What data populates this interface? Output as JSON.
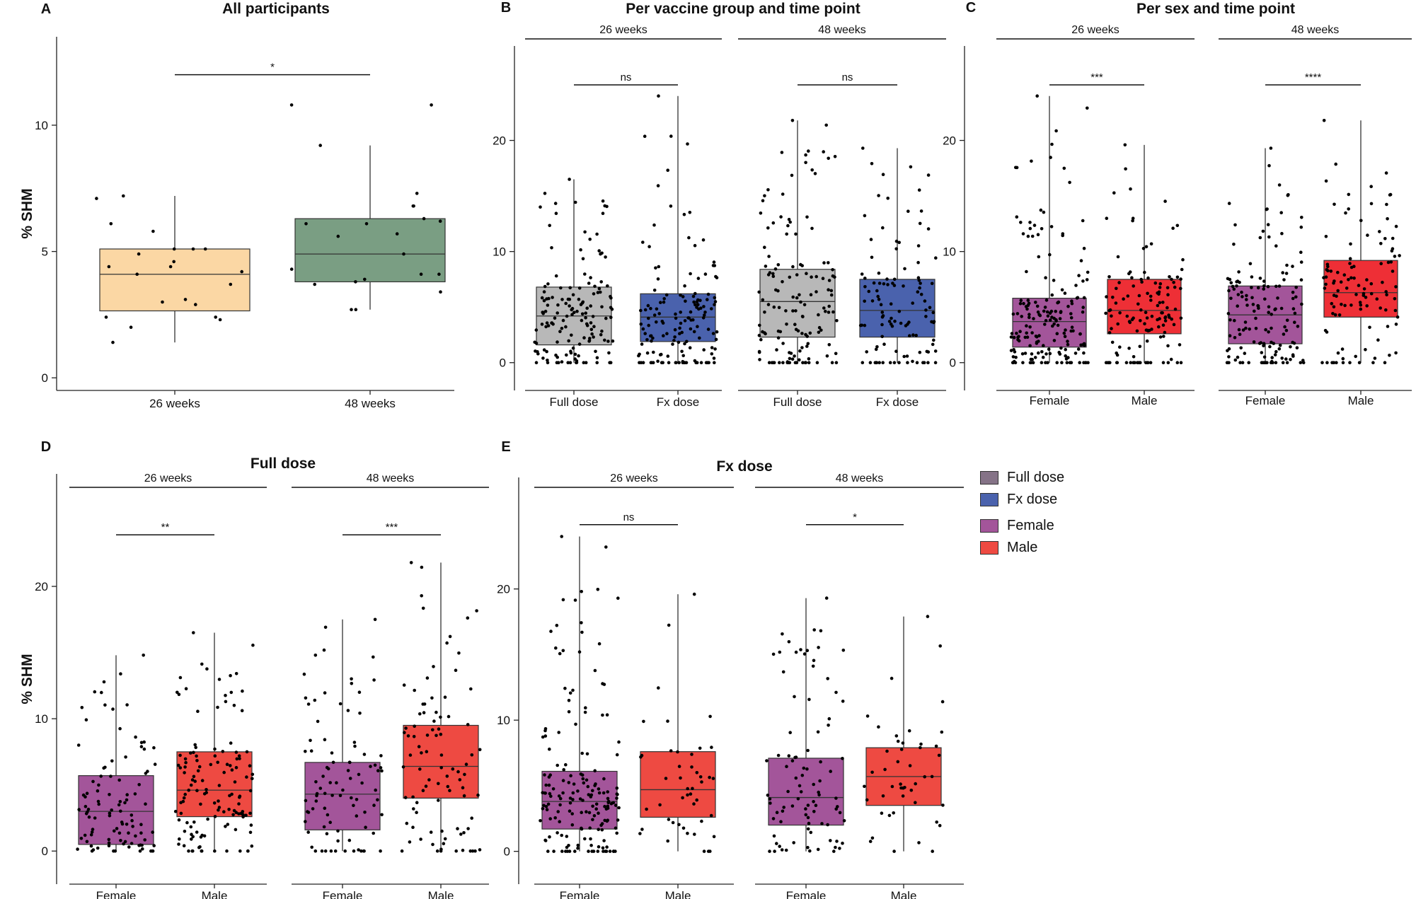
{
  "figure": {
    "legend": [
      {
        "label": "Full dose",
        "color": "#857387"
      },
      {
        "label": "Fx dose",
        "color": "#4a62ad"
      },
      {
        "label": "Female",
        "color": "#a3559a"
      },
      {
        "label": "Male",
        "color": "#ee4a42"
      }
    ]
  },
  "chart_data": [
    {
      "id": "A",
      "type": "box",
      "title": "All participants",
      "ylabel": "% SHM",
      "ylim": [
        -0.5,
        13.5
      ],
      "yticks": [
        0,
        5,
        10
      ],
      "facets": [
        {
          "label": "",
          "boxes": [
            {
              "category": "26 weeks",
              "color": "#fbd7a4",
              "min": 1.4,
              "q1": 2.65,
              "median": 4.1,
              "q3": 5.1,
              "max": 7.2,
              "points": [
                7.2,
                6.1,
                5.1,
                5.1,
                5.1,
                4.9,
                4.6,
                4.4,
                4.4,
                4.2,
                4.1,
                3.7,
                3.1,
                3.0,
                2.9,
                2.4,
                2.4,
                2.3,
                2.0,
                1.4,
                5.8,
                7.1
              ]
            },
            {
              "category": "48 weeks",
              "color": "#7a9e83",
              "min": 2.7,
              "q1": 3.8,
              "median": 4.9,
              "q3": 6.3,
              "max": 9.2,
              "points": [
                10.8,
                10.8,
                9.2,
                7.3,
                6.8,
                6.8,
                6.3,
                6.1,
                6.1,
                5.7,
                5.6,
                4.9,
                4.3,
                4.1,
                4.1,
                3.9,
                3.8,
                3.7,
                3.4,
                2.7,
                2.7,
                6.2
              ]
            }
          ],
          "annotations": [
            {
              "from": 0,
              "to": 1,
              "y": 12.0,
              "text": "*"
            }
          ]
        }
      ]
    },
    {
      "id": "B",
      "type": "box",
      "title": "Per vaccine group and time point",
      "ylabel": "",
      "ylim": [
        -2.5,
        28.5
      ],
      "yticks": [
        0,
        10,
        20
      ],
      "facets": [
        {
          "label": "26 weeks",
          "boxes": [
            {
              "category": "Full dose",
              "color": "#b8b8b8",
              "min": 0,
              "q1": 1.6,
              "median": 4.2,
              "q3": 6.8,
              "max": 16.5,
              "n": 150,
              "seed": 11
            },
            {
              "category": "Fx dose",
              "color": "#4a62ad",
              "min": 0,
              "q1": 1.9,
              "median": 4.1,
              "q3": 6.2,
              "max": 24.0,
              "n": 150,
              "seed": 12
            }
          ],
          "annotations": [
            {
              "from": 0,
              "to": 1,
              "y": 25.0,
              "text": "ns"
            }
          ]
        },
        {
          "label": "48 weeks",
          "boxes": [
            {
              "category": "Full dose",
              "color": "#b8b8b8",
              "min": 0,
              "q1": 2.3,
              "median": 5.5,
              "q3": 8.4,
              "max": 21.8,
              "n": 140,
              "seed": 13
            },
            {
              "category": "Fx dose",
              "color": "#4a62ad",
              "min": 0,
              "q1": 2.3,
              "median": 4.7,
              "q3": 7.5,
              "max": 19.3,
              "n": 110,
              "seed": 14
            }
          ],
          "annotations": [
            {
              "from": 0,
              "to": 1,
              "y": 25.0,
              "text": "ns"
            }
          ]
        }
      ]
    },
    {
      "id": "C",
      "type": "box",
      "title": "Per sex and time point",
      "ylabel": "",
      "ylim": [
        -2.5,
        28.5
      ],
      "yticks": [
        0,
        10,
        20
      ],
      "facets": [
        {
          "label": "26 weeks",
          "boxes": [
            {
              "category": "Female",
              "color": "#a3559a",
              "min": 0,
              "q1": 1.4,
              "median": 3.7,
              "q3": 5.8,
              "max": 24.0,
              "n": 180,
              "seed": 21
            },
            {
              "category": "Male",
              "color": "#ee2f36",
              "min": 0,
              "q1": 2.6,
              "median": 4.7,
              "q3": 7.5,
              "max": 19.6,
              "n": 130,
              "seed": 22
            }
          ],
          "annotations": [
            {
              "from": 0,
              "to": 1,
              "y": 25.0,
              "text": "***"
            }
          ]
        },
        {
          "label": "48 weeks",
          "boxes": [
            {
              "category": "Female",
              "color": "#a3559a",
              "min": 0,
              "q1": 1.7,
              "median": 4.3,
              "q3": 6.9,
              "max": 19.3,
              "n": 150,
              "seed": 23
            },
            {
              "category": "Male",
              "color": "#ee2f36",
              "min": 0,
              "q1": 4.1,
              "median": 6.3,
              "q3": 9.2,
              "max": 21.8,
              "n": 110,
              "seed": 24
            }
          ],
          "annotations": [
            {
              "from": 0,
              "to": 1,
              "y": 25.0,
              "text": "****"
            }
          ]
        }
      ]
    },
    {
      "id": "D",
      "type": "box",
      "title": "Full dose",
      "ylabel": "% SHM",
      "ylim": [
        -2.5,
        28.5
      ],
      "yticks": [
        0,
        10,
        20
      ],
      "facets": [
        {
          "label": "26 weeks",
          "boxes": [
            {
              "category": "Female",
              "color": "#a3559a",
              "min": 0,
              "q1": 0.5,
              "median": 3.0,
              "q3": 5.7,
              "max": 14.8,
              "n": 100,
              "seed": 31
            },
            {
              "category": "Male",
              "color": "#ee4a42",
              "min": 0,
              "q1": 2.6,
              "median": 4.6,
              "q3": 7.5,
              "max": 16.5,
              "n": 130,
              "seed": 32
            }
          ],
          "annotations": [
            {
              "from": 0,
              "to": 1,
              "y": 23.9,
              "text": "**"
            }
          ]
        },
        {
          "label": "48 weeks",
          "boxes": [
            {
              "category": "Female",
              "color": "#a3559a",
              "min": 0,
              "q1": 1.6,
              "median": 4.3,
              "q3": 6.7,
              "max": 17.5,
              "n": 90,
              "seed": 33
            },
            {
              "category": "Male",
              "color": "#ee4a42",
              "min": 0,
              "q1": 4.0,
              "median": 6.4,
              "q3": 9.5,
              "max": 21.8,
              "n": 90,
              "seed": 34
            }
          ],
          "annotations": [
            {
              "from": 0,
              "to": 1,
              "y": 23.9,
              "text": "***"
            }
          ]
        }
      ]
    },
    {
      "id": "E",
      "type": "box",
      "title": "Fx dose",
      "ylabel": "",
      "ylim": [
        -2.5,
        28.5
      ],
      "yticks": [
        0,
        10,
        20
      ],
      "facets": [
        {
          "label": "26 weeks",
          "boxes": [
            {
              "category": "Female",
              "color": "#a3559a",
              "min": 0,
              "q1": 1.7,
              "median": 3.8,
              "q3": 6.1,
              "max": 24.0,
              "n": 170,
              "seed": 41
            },
            {
              "category": "Male",
              "color": "#ee4a42",
              "min": 0,
              "q1": 2.6,
              "median": 4.7,
              "q3": 7.6,
              "max": 19.6,
              "n": 45,
              "seed": 42
            }
          ],
          "annotations": [
            {
              "from": 0,
              "to": 1,
              "y": 24.9,
              "text": "ns"
            }
          ]
        },
        {
          "label": "48 weeks",
          "boxes": [
            {
              "category": "Female",
              "color": "#a3559a",
              "min": 0,
              "q1": 2.0,
              "median": 4.1,
              "q3": 7.1,
              "max": 19.3,
              "n": 90,
              "seed": 43
            },
            {
              "category": "Male",
              "color": "#ee4a42",
              "min": 0,
              "q1": 3.5,
              "median": 5.7,
              "q3": 7.9,
              "max": 17.9,
              "n": 45,
              "seed": 44
            }
          ],
          "annotations": [
            {
              "from": 0,
              "to": 1,
              "y": 24.9,
              "text": "*"
            }
          ]
        }
      ]
    }
  ]
}
